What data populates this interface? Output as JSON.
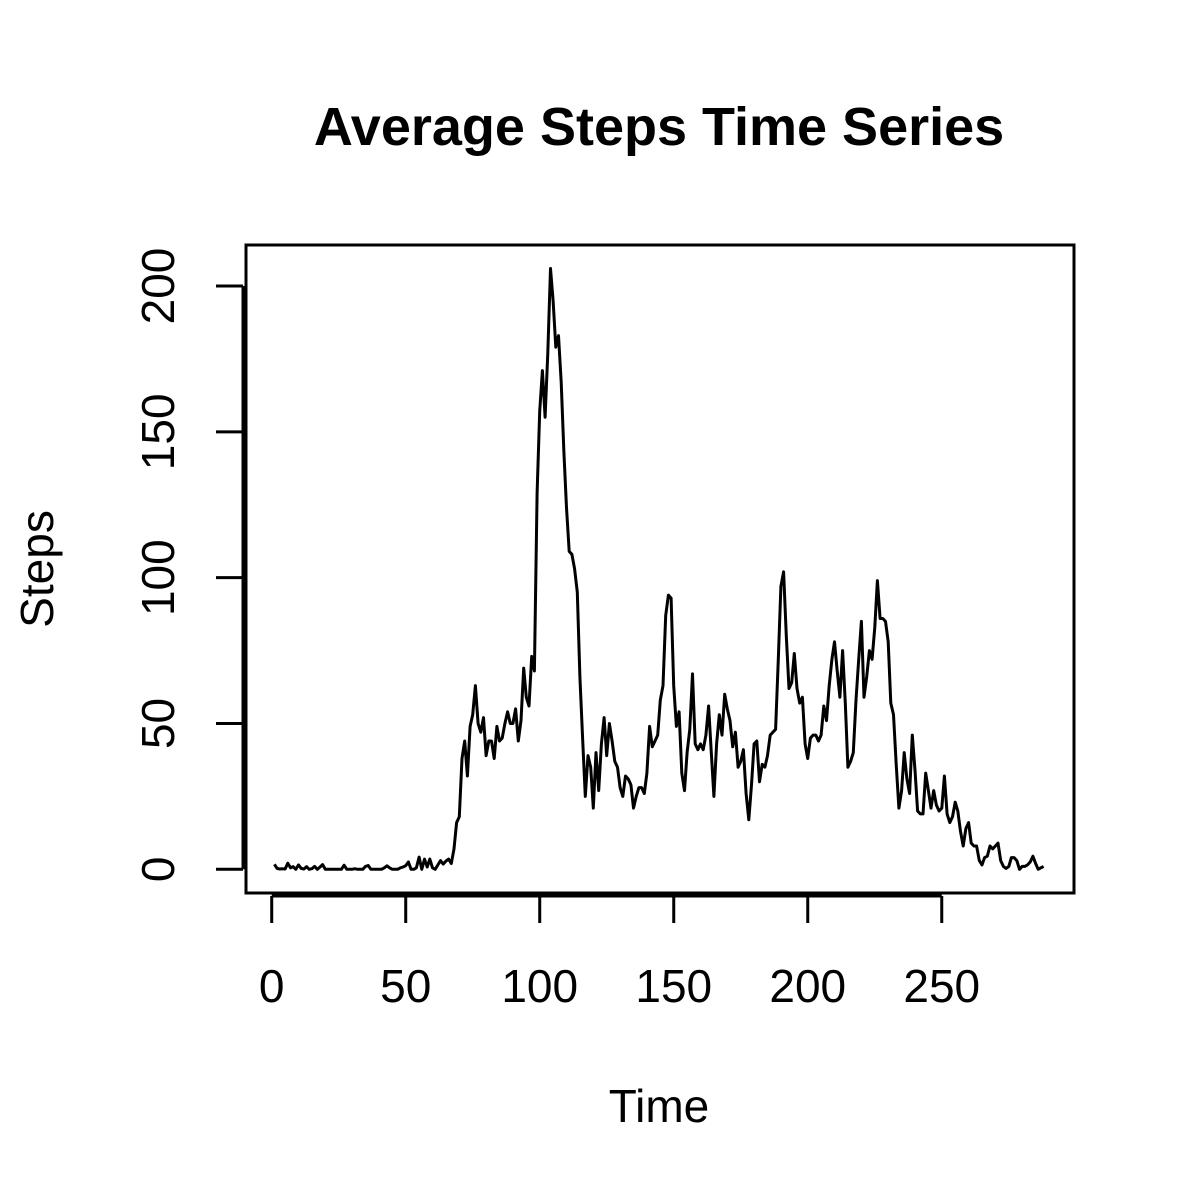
{
  "chart_data": {
    "type": "line",
    "title": "Average Steps Time Series",
    "xlabel": "Time",
    "ylabel": "Steps",
    "xlim": [
      1,
      288
    ],
    "ylim": [
      0,
      206
    ],
    "xticks": [
      0,
      50,
      100,
      150,
      200,
      250
    ],
    "yticks": [
      0,
      50,
      100,
      150,
      200
    ],
    "grid": false,
    "series": [
      {
        "color": "#000000",
        "x": [
          1,
          2,
          3,
          4,
          5,
          6,
          7,
          8,
          9,
          10,
          11,
          12,
          13,
          14,
          15,
          16,
          17,
          18,
          19,
          20,
          21,
          22,
          23,
          24,
          25,
          26,
          27,
          28,
          29,
          30,
          31,
          32,
          33,
          34,
          35,
          36,
          37,
          38,
          39,
          40,
          41,
          42,
          43,
          44,
          45,
          46,
          47,
          48,
          49,
          50,
          51,
          52,
          53,
          54,
          55,
          56,
          57,
          58,
          59,
          60,
          61,
          62,
          63,
          64,
          65,
          66,
          67,
          68,
          69,
          70,
          71,
          72,
          73,
          74,
          75,
          76,
          77,
          78,
          79,
          80,
          81,
          82,
          83,
          84,
          85,
          86,
          87,
          88,
          89,
          90,
          91,
          92,
          93,
          94,
          95,
          96,
          97,
          98,
          99,
          100,
          101,
          102,
          103,
          104,
          105,
          106,
          107,
          108,
          109,
          110,
          111,
          112,
          113,
          114,
          115,
          116,
          117,
          118,
          119,
          120,
          121,
          122,
          123,
          124,
          125,
          126,
          127,
          128,
          129,
          130,
          131,
          132,
          133,
          134,
          135,
          136,
          137,
          138,
          139,
          140,
          141,
          142,
          143,
          144,
          145,
          146,
          147,
          148,
          149,
          150,
          151,
          152,
          153,
          154,
          155,
          156,
          157,
          158,
          159,
          160,
          161,
          162,
          163,
          164,
          165,
          166,
          167,
          168,
          169,
          170,
          171,
          172,
          173,
          174,
          175,
          176,
          177,
          178,
          179,
          180,
          181,
          182,
          183,
          184,
          185,
          186,
          187,
          188,
          189,
          190,
          191,
          192,
          193,
          194,
          195,
          196,
          197,
          198,
          199,
          200,
          201,
          202,
          203,
          204,
          205,
          206,
          207,
          208,
          209,
          210,
          211,
          212,
          213,
          214,
          215,
          216,
          217,
          218,
          219,
          220,
          221,
          222,
          223,
          224,
          225,
          226,
          227,
          228,
          229,
          230,
          231,
          232,
          233,
          234,
          235,
          236,
          237,
          238,
          239,
          240,
          241,
          242,
          243,
          244,
          245,
          246,
          247,
          248,
          249,
          250,
          251,
          252,
          253,
          254,
          255,
          256,
          257,
          258,
          259,
          260,
          261,
          262,
          263,
          264,
          265,
          266,
          267,
          268,
          269,
          270,
          271,
          272,
          273,
          274,
          275,
          276,
          277,
          278,
          279,
          280,
          281,
          282,
          283,
          284,
          285,
          286,
          287,
          288
        ],
        "values": [
          1.7,
          0.3,
          0.1,
          0.2,
          0.1,
          2.1,
          0.5,
          0.9,
          0.0,
          1.5,
          0.3,
          0.1,
          0.9,
          0.0,
          0.2,
          1.0,
          0.0,
          0.8,
          1.6,
          0.0,
          0.0,
          0.0,
          0.0,
          0.0,
          0.0,
          0.0,
          1.4,
          0.0,
          0.0,
          0.0,
          0.2,
          0.0,
          0.0,
          0.0,
          1.0,
          1.3,
          0.0,
          0.0,
          0.0,
          0.0,
          0.0,
          0.5,
          1.2,
          0.5,
          0.0,
          0.0,
          0.0,
          0.5,
          0.8,
          1.2,
          2.5,
          0.0,
          0.0,
          0.5,
          4.2,
          0.0,
          3.5,
          0.8,
          3.5,
          0.5,
          0.0,
          1.5,
          3.0,
          1.8,
          2.8,
          3.5,
          2.0,
          7.0,
          16.0,
          18.0,
          38.0,
          44.0,
          32.0,
          49.0,
          53.0,
          63.0,
          50.0,
          47.0,
          52.0,
          39.0,
          44.0,
          44.0,
          38.0,
          49.0,
          44.0,
          45.0,
          50.0,
          54.0,
          50.0,
          50.0,
          55.0,
          44.0,
          51.0,
          69.0,
          59.0,
          56.0,
          73.0,
          68.0,
          129.0,
          157.0,
          171.0,
          155.0,
          177.0,
          206.0,
          195.0,
          179.0,
          183.0,
          167.0,
          143.0,
          124.0,
          109.0,
          108.0,
          103.0,
          95.0,
          66.0,
          45.0,
          25.0,
          39.0,
          35.0,
          21.0,
          40.0,
          27.0,
          43.0,
          52.0,
          39.0,
          50.0,
          44.0,
          37.0,
          35.0,
          28.0,
          25.0,
          32.0,
          31.0,
          29.0,
          21.0,
          25.0,
          28.0,
          28.0,
          26.0,
          33.0,
          49.0,
          42.0,
          44.0,
          46.0,
          58.0,
          63.0,
          87.0,
          94.0,
          93.0,
          63.0,
          49.0,
          54.0,
          33.0,
          27.0,
          40.0,
          48.0,
          67.0,
          43.0,
          41.0,
          43.0,
          41.0,
          46.0,
          56.0,
          40.0,
          25.0,
          43.0,
          53.0,
          46.0,
          60.0,
          55.0,
          51.0,
          42.0,
          47.0,
          35.0,
          37.0,
          41.0,
          26.0,
          17.0,
          29.0,
          43.0,
          44.0,
          30.0,
          36.0,
          35.0,
          39.0,
          46.0,
          47.0,
          48.0,
          72.0,
          97.0,
          102.0,
          80.0,
          62.0,
          64.0,
          74.0,
          62.0,
          57.0,
          59.0,
          43.0,
          38.0,
          45.0,
          46.0,
          46.0,
          44.0,
          46.0,
          56.0,
          51.0,
          63.0,
          72.0,
          78.0,
          68.0,
          59.0,
          75.0,
          57.0,
          35.0,
          37.0,
          40.0,
          58.0,
          72.0,
          85.0,
          59.0,
          66.0,
          75.0,
          72.0,
          83.0,
          99.0,
          86.0,
          86.0,
          85.0,
          78.0,
          57.0,
          53.0,
          36.0,
          21.0,
          27.0,
          40.0,
          31.0,
          26.0,
          46.0,
          34.0,
          20.0,
          19.0,
          19.0,
          33.0,
          27.0,
          21.0,
          27.0,
          22.0,
          20.0,
          21.0,
          32.0,
          19.0,
          16.0,
          18.0,
          23.0,
          20.0,
          13.0,
          8.0,
          14.0,
          16.0,
          9.0,
          8.0,
          8.0,
          3.0,
          1.5,
          4.0,
          4.5,
          8.0,
          7.0,
          8.0,
          9.0,
          3.0,
          1.0,
          0.3,
          1.0,
          4.0,
          4.0,
          3.0,
          0.0,
          1.0,
          1.0,
          1.5,
          2.5,
          4.5,
          2.0,
          0.0,
          0.5,
          1.0
        ]
      }
    ]
  }
}
